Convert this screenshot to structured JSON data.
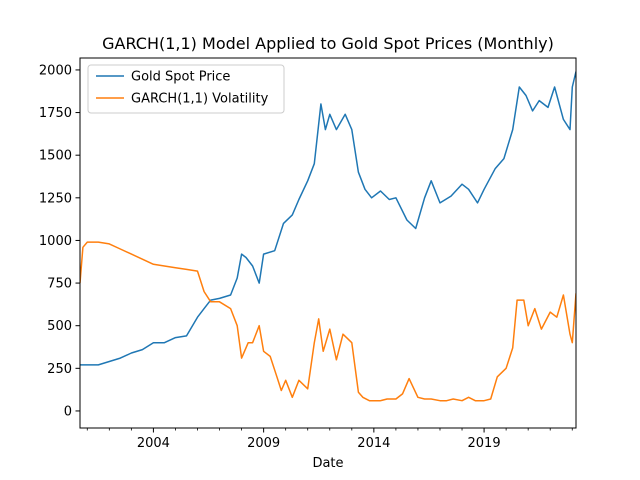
{
  "chart_data": {
    "type": "line",
    "title": "GARCH(1,1) Model Applied to Gold Spot Prices (Monthly)",
    "xlabel": "Date",
    "ylabel": "",
    "xlim": [
      2000.67,
      2023.17
    ],
    "ylim": [
      -100,
      2070
    ],
    "x_ticks": [
      {
        "value": 2004,
        "label": "2004"
      },
      {
        "value": 2009,
        "label": "2009"
      },
      {
        "value": 2014,
        "label": "2014"
      },
      {
        "value": 2019,
        "label": "2019"
      }
    ],
    "y_ticks": [
      0,
      250,
      500,
      750,
      1000,
      1250,
      1500,
      1750,
      2000
    ],
    "legend": "upper-left",
    "grid": false,
    "series": [
      {
        "name": "Gold Spot Price",
        "color": "#1f77b4",
        "x": [
          2000.67,
          2001.0,
          2001.5,
          2002.0,
          2002.5,
          2003.0,
          2003.5,
          2004.0,
          2004.5,
          2005.0,
          2005.5,
          2006.0,
          2006.3,
          2006.6,
          2007.0,
          2007.5,
          2007.8,
          2008.0,
          2008.2,
          2008.5,
          2008.8,
          2009.0,
          2009.5,
          2009.9,
          2010.3,
          2010.6,
          2011.0,
          2011.3,
          2011.6,
          2011.8,
          2012.0,
          2012.3,
          2012.7,
          2013.0,
          2013.3,
          2013.6,
          2013.9,
          2014.3,
          2014.7,
          2015.0,
          2015.5,
          2015.9,
          2016.3,
          2016.6,
          2017.0,
          2017.5,
          2018.0,
          2018.3,
          2018.7,
          2019.0,
          2019.5,
          2019.9,
          2020.3,
          2020.6,
          2020.9,
          2021.2,
          2021.5,
          2021.9,
          2022.2,
          2022.6,
          2022.9,
          2023.0,
          2023.17
        ],
        "y": [
          270,
          270,
          270,
          290,
          310,
          340,
          360,
          400,
          400,
          430,
          440,
          550,
          600,
          650,
          660,
          680,
          780,
          920,
          900,
          850,
          750,
          920,
          940,
          1100,
          1150,
          1240,
          1350,
          1450,
          1800,
          1650,
          1740,
          1650,
          1740,
          1650,
          1400,
          1300,
          1250,
          1290,
          1240,
          1250,
          1120,
          1070,
          1250,
          1350,
          1220,
          1260,
          1330,
          1300,
          1220,
          1300,
          1420,
          1480,
          1650,
          1900,
          1850,
          1760,
          1820,
          1780,
          1900,
          1710,
          1650,
          1900,
          1990
        ]
      },
      {
        "name": "GARCH(1,1) Volatility",
        "color": "#ff7f0e",
        "x": [
          2000.67,
          2000.8,
          2001.0,
          2001.5,
          2002.0,
          2002.5,
          2003.0,
          2003.5,
          2004.0,
          2004.5,
          2005.0,
          2005.5,
          2006.0,
          2006.3,
          2006.6,
          2007.0,
          2007.5,
          2007.8,
          2008.0,
          2008.3,
          2008.5,
          2008.8,
          2009.0,
          2009.3,
          2009.6,
          2009.8,
          2010.0,
          2010.3,
          2010.6,
          2011.0,
          2011.3,
          2011.5,
          2011.7,
          2012.0,
          2012.3,
          2012.6,
          2013.0,
          2013.3,
          2013.5,
          2013.8,
          2014.0,
          2014.3,
          2014.6,
          2015.0,
          2015.3,
          2015.6,
          2016.0,
          2016.3,
          2016.6,
          2017.0,
          2017.3,
          2017.6,
          2018.0,
          2018.3,
          2018.6,
          2019.0,
          2019.3,
          2019.6,
          2020.0,
          2020.3,
          2020.5,
          2020.8,
          2021.0,
          2021.3,
          2021.6,
          2022.0,
          2022.3,
          2022.6,
          2022.9,
          2023.0,
          2023.17
        ],
        "y": [
          750,
          960,
          990,
          990,
          980,
          950,
          920,
          890,
          860,
          850,
          840,
          830,
          820,
          700,
          640,
          640,
          600,
          500,
          310,
          400,
          400,
          500,
          350,
          320,
          200,
          120,
          180,
          80,
          180,
          130,
          400,
          540,
          350,
          480,
          300,
          450,
          400,
          110,
          80,
          60,
          60,
          60,
          70,
          70,
          100,
          190,
          80,
          70,
          70,
          60,
          60,
          70,
          60,
          80,
          60,
          60,
          70,
          200,
          250,
          370,
          650,
          650,
          500,
          600,
          480,
          580,
          550,
          680,
          450,
          400,
          690
        ]
      }
    ]
  }
}
